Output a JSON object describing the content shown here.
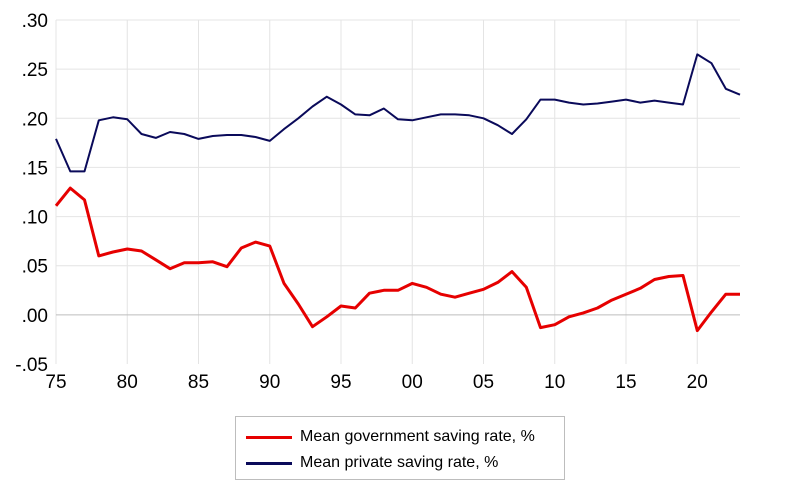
{
  "chart_data": {
    "type": "line",
    "title": "",
    "xlabel": "",
    "ylabel": "",
    "xlim": [
      1975,
      2023
    ],
    "ylim": [
      -0.05,
      0.3
    ],
    "grid": true,
    "legend_position": "bottom-center",
    "x_ticks": [
      {
        "value": 1975,
        "label": "75"
      },
      {
        "value": 1980,
        "label": "80"
      },
      {
        "value": 1985,
        "label": "85"
      },
      {
        "value": 1990,
        "label": "90"
      },
      {
        "value": 1995,
        "label": "95"
      },
      {
        "value": 2000,
        "label": "00"
      },
      {
        "value": 2005,
        "label": "05"
      },
      {
        "value": 2010,
        "label": "10"
      },
      {
        "value": 2015,
        "label": "15"
      },
      {
        "value": 2020,
        "label": "20"
      }
    ],
    "y_ticks": [
      {
        "value": -0.05,
        "label": "-.05"
      },
      {
        "value": 0.0,
        "label": ".00"
      },
      {
        "value": 0.05,
        "label": ".05"
      },
      {
        "value": 0.1,
        "label": ".10"
      },
      {
        "value": 0.15,
        "label": ".15"
      },
      {
        "value": 0.2,
        "label": ".20"
      },
      {
        "value": 0.25,
        "label": ".25"
      },
      {
        "value": 0.3,
        "label": ".30"
      }
    ],
    "x": [
      1975,
      1976,
      1977,
      1978,
      1979,
      1980,
      1981,
      1982,
      1983,
      1984,
      1985,
      1986,
      1987,
      1988,
      1989,
      1990,
      1991,
      1992,
      1993,
      1994,
      1995,
      1996,
      1997,
      1998,
      1999,
      2000,
      2001,
      2002,
      2003,
      2004,
      2005,
      2006,
      2007,
      2008,
      2009,
      2010,
      2011,
      2012,
      2013,
      2014,
      2015,
      2016,
      2017,
      2018,
      2019,
      2020,
      2021,
      2022,
      2023
    ],
    "series": [
      {
        "name": "Mean government saving rate, %",
        "color": "#e60000",
        "values": [
          0.111,
          0.129,
          0.117,
          0.06,
          0.064,
          0.067,
          0.065,
          0.056,
          0.047,
          0.053,
          0.053,
          0.054,
          0.049,
          0.068,
          0.074,
          0.07,
          0.032,
          0.011,
          -0.012,
          -0.002,
          0.009,
          0.007,
          0.022,
          0.025,
          0.025,
          0.032,
          0.028,
          0.021,
          0.018,
          0.022,
          0.026,
          0.033,
          0.044,
          0.028,
          -0.013,
          -0.01,
          -0.002,
          0.002,
          0.007,
          0.015,
          0.021,
          0.027,
          0.036,
          0.039,
          0.04,
          -0.016,
          0.003,
          0.021,
          0.021
        ]
      },
      {
        "name": "Mean private saving rate, %",
        "color": "#0a0a5a",
        "values": [
          0.179,
          0.146,
          0.146,
          0.198,
          0.201,
          0.199,
          0.184,
          0.18,
          0.186,
          0.184,
          0.179,
          0.182,
          0.183,
          0.183,
          0.181,
          0.177,
          0.189,
          0.2,
          0.212,
          0.222,
          0.214,
          0.204,
          0.203,
          0.21,
          0.199,
          0.198,
          0.201,
          0.204,
          0.204,
          0.203,
          0.2,
          0.193,
          0.184,
          0.199,
          0.219,
          0.219,
          0.216,
          0.214,
          0.215,
          0.217,
          0.219,
          0.216,
          0.218,
          0.216,
          0.214,
          0.265,
          0.256,
          0.23,
          0.224
        ]
      }
    ]
  },
  "legend": {
    "items": [
      {
        "label": "Mean government saving rate, %",
        "color": "#e60000"
      },
      {
        "label": "Mean private saving rate, %",
        "color": "#0a0a5a"
      }
    ]
  }
}
